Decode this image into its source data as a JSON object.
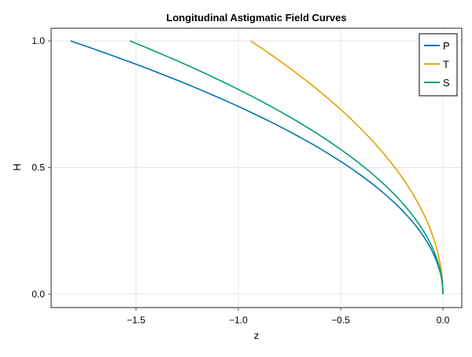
{
  "chart_data": {
    "type": "line",
    "title": "Longitudinal Astigmatic Field Curves",
    "xlabel": "z",
    "ylabel": "H",
    "xlim": [
      -1.915,
      0.092
    ],
    "ylim": [
      -0.053,
      1.05
    ],
    "xticks": [
      -1.5,
      -1.0,
      -0.5,
      0.0
    ],
    "xtick_labels": [
      "−1.5",
      "−1.0",
      "−0.5",
      "0.0"
    ],
    "yticks": [
      0.0,
      0.5,
      1.0
    ],
    "ytick_labels": [
      "0.0",
      "0.5",
      "1.0"
    ],
    "grid": true,
    "legend_position": "top-right",
    "series": [
      {
        "name": "P",
        "color": "#0072b2",
        "H": [
          0,
          0.1,
          0.2,
          0.3,
          0.4,
          0.5,
          0.6,
          0.7,
          0.8,
          0.9,
          1.0
        ],
        "z": [
          0,
          -0.0182,
          -0.0728,
          -0.1638,
          -0.2912,
          -0.455,
          -0.6552,
          -0.8918,
          -1.1648,
          -1.4742,
          -1.82
        ]
      },
      {
        "name": "T",
        "color": "#e69f00",
        "H": [
          0,
          0.1,
          0.2,
          0.3,
          0.4,
          0.5,
          0.6,
          0.7,
          0.8,
          0.9,
          1.0
        ],
        "z": [
          0,
          -0.0094,
          -0.0376,
          -0.0846,
          -0.1504,
          -0.235,
          -0.3384,
          -0.4606,
          -0.6016,
          -0.7614,
          -0.94
        ]
      },
      {
        "name": "S",
        "color": "#009e73",
        "H": [
          0,
          0.1,
          0.2,
          0.3,
          0.4,
          0.5,
          0.6,
          0.7,
          0.8,
          0.9,
          1.0
        ],
        "z": [
          0,
          -0.0153,
          -0.0612,
          -0.1377,
          -0.2448,
          -0.3825,
          -0.5508,
          -0.7497,
          -0.9792,
          -1.2393,
          -1.53
        ]
      }
    ]
  }
}
